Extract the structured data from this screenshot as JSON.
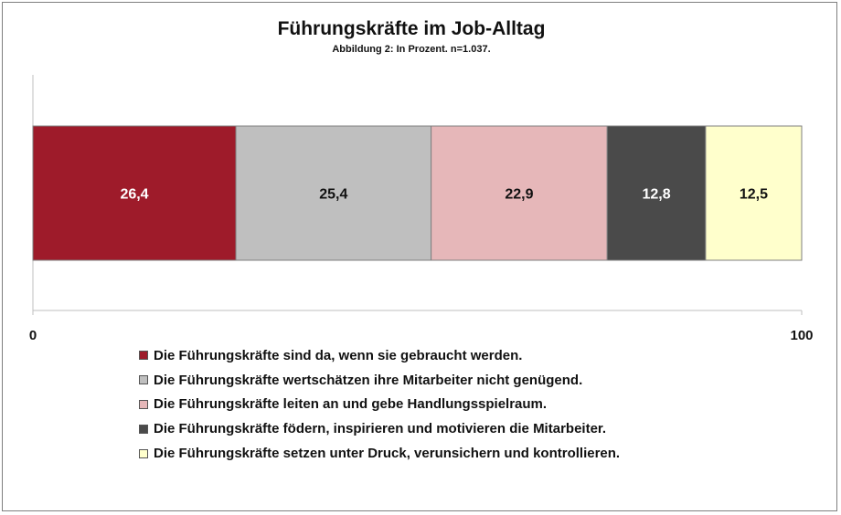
{
  "chart_data": {
    "type": "bar",
    "orientation": "horizontal-stacked",
    "title": "Führungskräfte im Job-Alltag",
    "subtitle": "Abbildung 2: In Prozent. n=1.037.",
    "xlim": [
      0,
      100
    ],
    "x_ticks": [
      "0",
      "100"
    ],
    "grid": false,
    "legend_position": "bottom",
    "series": [
      {
        "name": "Die Führungskräfte sind da, wenn sie gebraucht werden.",
        "value": 26.4,
        "label": "26,4",
        "color": "#9e1b2a",
        "label_color": "#ffffff"
      },
      {
        "name": "Die Führungskräfte wertschätzen ihre Mitarbeiter nicht genügend.",
        "value": 25.4,
        "label": "25,4",
        "color": "#bfbfbf",
        "label_color": "#111111"
      },
      {
        "name": "Die Führungskräfte leiten an und gebe Handlungsspielraum.",
        "value": 22.9,
        "label": "22,9",
        "color": "#e6b7b9",
        "label_color": "#111111"
      },
      {
        "name": "Die Führungskräfte födern, inspirieren und motivieren die Mitarbeiter.",
        "value": 12.8,
        "label": "12,8",
        "color": "#4a4a4a",
        "label_color": "#ffffff"
      },
      {
        "name": "Die Führungskräfte setzen unter Druck, verunsichern und kontrollieren.",
        "value": 12.5,
        "label": "12,5",
        "color": "#ffffcc",
        "label_color": "#111111"
      }
    ]
  }
}
